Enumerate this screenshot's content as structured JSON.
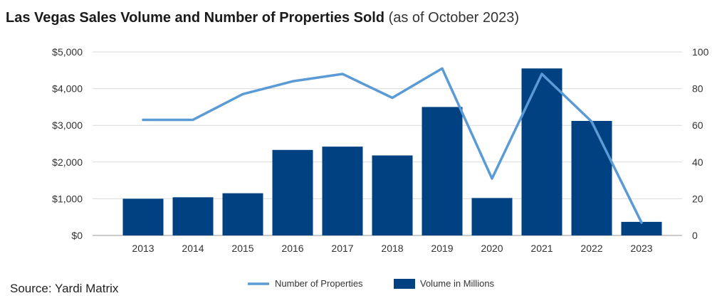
{
  "title": {
    "main": "Las Vegas Sales Volume and Number of Properties Sold",
    "sub": "(as of October 2023)"
  },
  "source": "Source: Yardi Matrix",
  "chart_data": {
    "type": "bar",
    "categories": [
      "2013",
      "2014",
      "2015",
      "2016",
      "2017",
      "2018",
      "2019",
      "2020",
      "2021",
      "2022",
      "2023"
    ],
    "series": [
      {
        "name": "Volume in Millions",
        "type": "bar",
        "axis": "left",
        "color": "#004181",
        "values": [
          1000,
          1040,
          1150,
          2330,
          2420,
          2180,
          3500,
          1020,
          4550,
          3120,
          370
        ]
      },
      {
        "name": "Number of Properties",
        "type": "line",
        "axis": "right",
        "color": "#5b9bd5",
        "values": [
          63,
          63,
          77,
          84,
          88,
          75,
          91,
          31,
          88,
          62,
          7
        ]
      }
    ],
    "y_left": {
      "lim": [
        0,
        5000
      ],
      "ticks": [
        0,
        1000,
        2000,
        3000,
        4000,
        5000
      ],
      "tick_labels": [
        "$0",
        "$1,000",
        "$2,000",
        "$3,000",
        "$4,000",
        "$5,000"
      ]
    },
    "y_right": {
      "lim": [
        0,
        100
      ],
      "ticks": [
        0,
        20,
        40,
        60,
        80,
        100
      ],
      "tick_labels": [
        "0",
        "20",
        "40",
        "60",
        "80",
        "100"
      ]
    },
    "grid": true,
    "legend_position": "bottom-center"
  }
}
